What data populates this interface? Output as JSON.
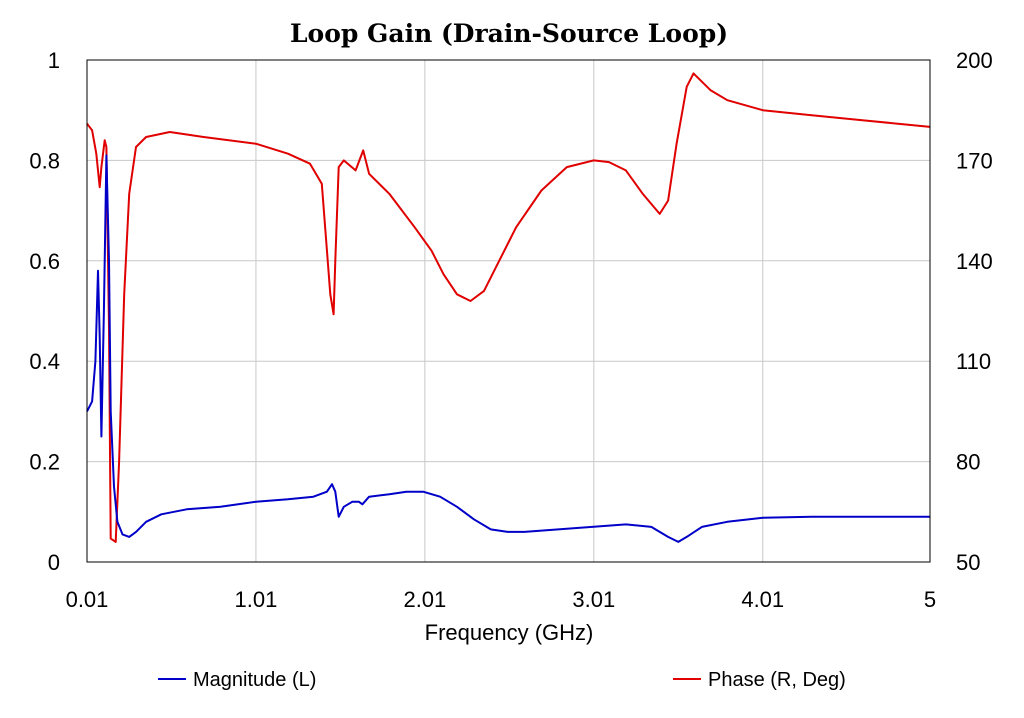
{
  "chart_data": {
    "type": "line",
    "title": "Loop Gain (Drain-Source Loop)",
    "xlabel": "Frequency (GHz)",
    "xlim": [
      0.01,
      5
    ],
    "ylim_left": [
      0,
      1
    ],
    "ylim_right": [
      50,
      200
    ],
    "grid": true,
    "x_ticks": [
      0.01,
      1.01,
      2.01,
      3.01,
      4.01,
      5
    ],
    "x_tick_labels": [
      "0.01",
      "1.01",
      "2.01",
      "3.01",
      "4.01",
      "5"
    ],
    "y_left_ticks": [
      0,
      0.2,
      0.4,
      0.6,
      0.8,
      1
    ],
    "y_left_tick_labels": [
      "0",
      "0.2",
      "0.4",
      "0.6",
      "0.8",
      "1"
    ],
    "y_right_ticks": [
      50,
      80,
      110,
      140,
      170,
      200
    ],
    "y_right_tick_labels": [
      "50",
      "80",
      "110",
      "140",
      "170",
      "200"
    ],
    "legend_placement": "bottom",
    "series": [
      {
        "name": "Magnitude (L)",
        "axis": "left",
        "color": "#0000c8",
        "points": [
          [
            0.01,
            0.3
          ],
          [
            0.04,
            0.32
          ],
          [
            0.06,
            0.4
          ],
          [
            0.075,
            0.58
          ],
          [
            0.085,
            0.45
          ],
          [
            0.095,
            0.25
          ],
          [
            0.11,
            0.5
          ],
          [
            0.125,
            0.81
          ],
          [
            0.14,
            0.6
          ],
          [
            0.15,
            0.3
          ],
          [
            0.17,
            0.15
          ],
          [
            0.19,
            0.08
          ],
          [
            0.22,
            0.055
          ],
          [
            0.26,
            0.05
          ],
          [
            0.3,
            0.06
          ],
          [
            0.36,
            0.08
          ],
          [
            0.45,
            0.095
          ],
          [
            0.6,
            0.105
          ],
          [
            0.8,
            0.11
          ],
          [
            1.01,
            0.12
          ],
          [
            1.2,
            0.125
          ],
          [
            1.35,
            0.13
          ],
          [
            1.43,
            0.14
          ],
          [
            1.46,
            0.155
          ],
          [
            1.48,
            0.14
          ],
          [
            1.5,
            0.09
          ],
          [
            1.53,
            0.11
          ],
          [
            1.58,
            0.12
          ],
          [
            1.62,
            0.12
          ],
          [
            1.64,
            0.115
          ],
          [
            1.68,
            0.13
          ],
          [
            1.8,
            0.135
          ],
          [
            1.9,
            0.14
          ],
          [
            2.0,
            0.14
          ],
          [
            2.1,
            0.13
          ],
          [
            2.2,
            0.11
          ],
          [
            2.3,
            0.085
          ],
          [
            2.4,
            0.065
          ],
          [
            2.5,
            0.06
          ],
          [
            2.6,
            0.06
          ],
          [
            2.8,
            0.065
          ],
          [
            3.0,
            0.07
          ],
          [
            3.2,
            0.075
          ],
          [
            3.35,
            0.07
          ],
          [
            3.45,
            0.05
          ],
          [
            3.51,
            0.04
          ],
          [
            3.56,
            0.05
          ],
          [
            3.65,
            0.07
          ],
          [
            3.8,
            0.08
          ],
          [
            4.01,
            0.088
          ],
          [
            4.3,
            0.09
          ],
          [
            4.6,
            0.09
          ],
          [
            5.0,
            0.09
          ]
        ]
      },
      {
        "name": "Phase (R, Deg)",
        "axis": "right",
        "color": "#e00000",
        "points": [
          [
            0.01,
            181
          ],
          [
            0.04,
            179
          ],
          [
            0.065,
            172
          ],
          [
            0.085,
            162
          ],
          [
            0.095,
            168
          ],
          [
            0.115,
            176
          ],
          [
            0.125,
            174
          ],
          [
            0.14,
            120
          ],
          [
            0.15,
            57
          ],
          [
            0.18,
            56
          ],
          [
            0.2,
            80
          ],
          [
            0.23,
            130
          ],
          [
            0.26,
            160
          ],
          [
            0.3,
            174
          ],
          [
            0.36,
            177
          ],
          [
            0.5,
            178.5
          ],
          [
            0.7,
            177
          ],
          [
            1.01,
            175
          ],
          [
            1.2,
            172
          ],
          [
            1.33,
            169
          ],
          [
            1.4,
            163
          ],
          [
            1.45,
            130
          ],
          [
            1.47,
            124
          ],
          [
            1.48,
            140
          ],
          [
            1.5,
            168
          ],
          [
            1.53,
            170
          ],
          [
            1.6,
            167
          ],
          [
            1.645,
            173
          ],
          [
            1.68,
            166
          ],
          [
            1.8,
            160
          ],
          [
            1.95,
            150
          ],
          [
            2.05,
            143
          ],
          [
            2.12,
            136
          ],
          [
            2.2,
            130
          ],
          [
            2.28,
            128
          ],
          [
            2.36,
            131
          ],
          [
            2.45,
            140
          ],
          [
            2.55,
            150
          ],
          [
            2.7,
            161
          ],
          [
            2.85,
            168
          ],
          [
            3.01,
            170
          ],
          [
            3.1,
            169.5
          ],
          [
            3.2,
            167
          ],
          [
            3.3,
            160
          ],
          [
            3.4,
            154
          ],
          [
            3.45,
            158
          ],
          [
            3.5,
            175
          ],
          [
            3.56,
            192
          ],
          [
            3.6,
            196
          ],
          [
            3.7,
            191
          ],
          [
            3.8,
            188
          ],
          [
            4.01,
            185
          ],
          [
            4.3,
            183.5
          ],
          [
            4.6,
            182
          ],
          [
            5.0,
            180
          ]
        ]
      }
    ]
  }
}
